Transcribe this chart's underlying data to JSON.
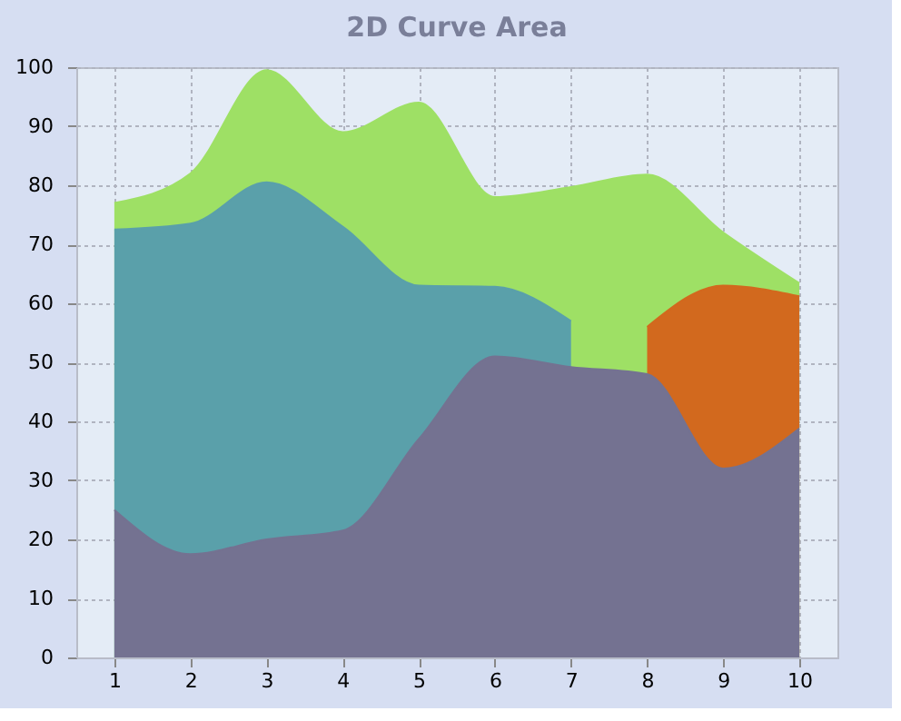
{
  "chart_data": {
    "type": "area",
    "title": "2D Curve Area",
    "x": [
      1,
      2,
      3,
      4,
      5,
      6,
      7,
      8,
      9,
      10
    ],
    "series": [
      {
        "color": "#9ee065",
        "values": [
          77,
          82,
          99.5,
          89,
          94,
          78,
          79.7,
          81.8,
          72,
          63.4
        ]
      },
      {
        "color": "#d2691e",
        "values": [
          null,
          null,
          null,
          null,
          null,
          null,
          null,
          56,
          63,
          61.2
        ]
      },
      {
        "color": "#5aa0aa",
        "values": [
          72.5,
          73.5,
          80.5,
          73,
          63,
          62.8,
          57,
          null,
          null,
          null
        ]
      },
      {
        "color": "#747291",
        "values": [
          25,
          17.5,
          20,
          21.5,
          37,
          51,
          49.2,
          48,
          32,
          38.8
        ]
      }
    ],
    "xlim": [
      0.5,
      10.5
    ],
    "xticks": [
      1,
      2,
      3,
      4,
      5,
      6,
      7,
      8,
      9,
      10
    ],
    "ylim": [
      0,
      100
    ],
    "yticks": [
      0,
      10,
      20,
      30,
      40,
      50,
      60,
      70,
      80,
      90,
      100
    ],
    "grid": true
  }
}
